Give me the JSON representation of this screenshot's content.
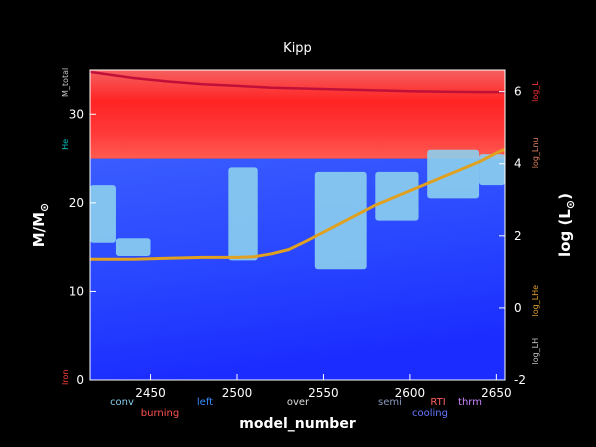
{
  "chart_data": {
    "type": "area",
    "title": "Kipp",
    "xlabel": "model_number",
    "ylabel": "M/M_sun",
    "ylabel_main": "M/M",
    "ylabel_sub": "⊙",
    "y2label": "log (L_sun)",
    "y2label_main": "log (L",
    "y2label_sub": "⊙",
    "y2label_close": ")",
    "xlim": [
      2415,
      2655
    ],
    "ylim": [
      0,
      35
    ],
    "y2lim": [
      -2,
      6.6
    ],
    "x_ticks": [
      2450,
      2500,
      2550,
      2600,
      2650
    ],
    "y_ticks": [
      0,
      10,
      20,
      30
    ],
    "y2_ticks": [
      -2,
      0,
      2,
      4,
      6
    ],
    "grid": false,
    "left_side_labels": [
      {
        "text": "M_total",
        "color": "#c8c8c8",
        "y": 33.6
      },
      {
        "text": "He",
        "color": "#00bfbf",
        "y": 26.6
      },
      {
        "text": "Iron",
        "color": "#ff4040",
        "y": 0.3
      }
    ],
    "right_side_labels": [
      {
        "text": "log_L",
        "color": "#ff3030",
        "y2": 6.0
      },
      {
        "text": "log_Lnu",
        "color": "#e08060",
        "y2": 4.3
      },
      {
        "text": "log_LHe",
        "color": "#e0a030",
        "y2": 0.2
      },
      {
        "text": "log_LH",
        "color": "#c0c0c0",
        "y2": -1.2
      }
    ],
    "legend": {
      "placement": "bottom",
      "row1": [
        {
          "label": "conv",
          "color": "#87ceeb"
        },
        {
          "label": "left",
          "color": "#3b8cff"
        },
        {
          "label": "over",
          "color": "#dddddd"
        },
        {
          "label": "semi",
          "color": "#8899bb"
        },
        {
          "label": "thrm",
          "color": "#cc88ff"
        }
      ],
      "row2": [
        {
          "label": "burning",
          "color": "#ff5050"
        },
        {
          "label": "RTI",
          "color": "#ff6060"
        },
        {
          "label": "cooling",
          "color": "#6677ff"
        }
      ]
    },
    "series": [
      {
        "name": "log_L",
        "axis": "y2",
        "color": "#e0a020",
        "x": [
          2415,
          2440,
          2460,
          2480,
          2500,
          2510,
          2520,
          2530,
          2540,
          2550,
          2560,
          2570,
          2580,
          2590,
          2600,
          2610,
          2620,
          2630,
          2640,
          2650,
          2655
        ],
        "y": [
          1.35,
          1.35,
          1.38,
          1.4,
          1.4,
          1.42,
          1.5,
          1.62,
          1.85,
          2.1,
          2.35,
          2.6,
          2.85,
          3.05,
          3.25,
          3.45,
          3.65,
          3.85,
          4.05,
          4.3,
          4.4
        ]
      },
      {
        "name": "M_total",
        "axis": "y",
        "color": "#c0103a",
        "x": [
          2415,
          2440,
          2460,
          2480,
          2500,
          2520,
          2540,
          2560,
          2580,
          2600,
          2620,
          2640,
          2655
        ],
        "y": [
          34.8,
          34.1,
          33.7,
          33.4,
          33.2,
          33.0,
          32.9,
          32.8,
          32.7,
          32.6,
          32.55,
          32.5,
          32.5
        ]
      }
    ],
    "regions": {
      "hydrogen_envelope_boundary": 25.0,
      "convective_patches": [
        {
          "x0": 2415,
          "x1": 2430,
          "y0": 15.5,
          "y1": 22.0
        },
        {
          "x0": 2430,
          "x1": 2450,
          "y0": 14.0,
          "y1": 16.0
        },
        {
          "x0": 2495,
          "x1": 2512,
          "y0": 13.5,
          "y1": 24.0
        },
        {
          "x0": 2545,
          "x1": 2575,
          "y0": 12.5,
          "y1": 23.5
        },
        {
          "x0": 2580,
          "x1": 2605,
          "y0": 18.0,
          "y1": 23.5
        },
        {
          "x0": 2610,
          "x1": 2640,
          "y0": 20.5,
          "y1": 26.0
        },
        {
          "x0": 2640,
          "x1": 2655,
          "y0": 22.0,
          "y1": 25.5
        }
      ]
    }
  }
}
